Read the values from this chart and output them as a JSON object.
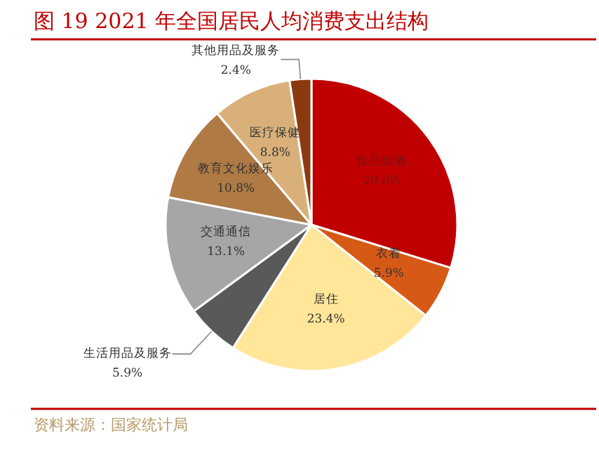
{
  "chart_data": {
    "type": "pie",
    "title": "图 19 2021 年全国居民人均消费支出结构",
    "categories": [
      "食品烟酒",
      "衣着",
      "居住",
      "生活用品及服务",
      "交通通信",
      "教育文化娱乐",
      "医疗保健",
      "其他用品及服务"
    ],
    "values": [
      29.8,
      5.9,
      23.4,
      5.9,
      13.1,
      10.8,
      8.8,
      2.4
    ],
    "value_labels": [
      "29.8%",
      "5.9%",
      "23.4%",
      "5.9%",
      "13.1%",
      "10.8%",
      "8.8%",
      "2.4%"
    ],
    "colors": [
      "#c00000",
      "#d65a16",
      "#ffe699",
      "#595959",
      "#a6a6a6",
      "#b07a45",
      "#d9b07a",
      "#8b3a10"
    ],
    "legend": false,
    "annotations": [
      "资料来源：国家统计局"
    ]
  }
}
